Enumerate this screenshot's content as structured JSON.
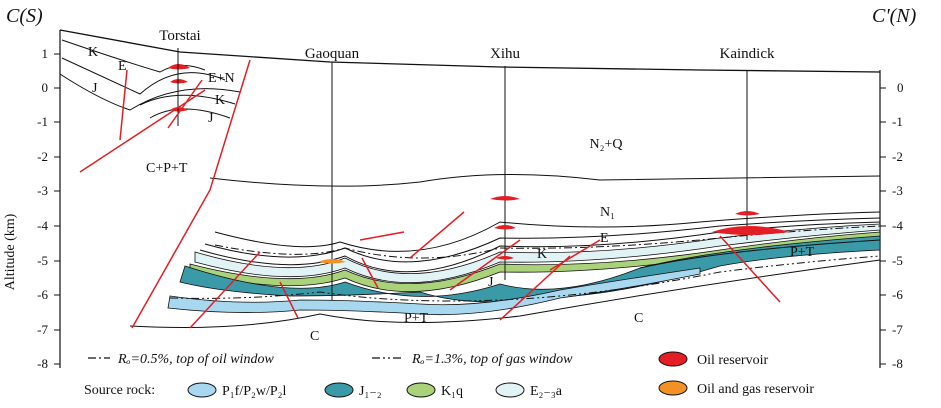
{
  "titles": {
    "left": "C(S)",
    "right": "C'(N)"
  },
  "axis": {
    "label": "Altitude (km)",
    "left_ticks": [
      "1",
      "0",
      "-1",
      "-2",
      "-3",
      "-4",
      "-5",
      "-6",
      "-7",
      "-8"
    ],
    "right_ticks": [
      "0",
      "-1",
      "-2",
      "-3",
      "-4",
      "-5",
      "-6",
      "-7",
      "-8"
    ]
  },
  "wells": [
    "Torstai",
    "Gaoquan",
    "Xihu",
    "Kaindick"
  ],
  "units": {
    "K_top": "K",
    "E_top": "E",
    "J_top": "J",
    "E_N": "E+N",
    "K_mid": "K",
    "J_mid": "J",
    "CPT": "C+P+T",
    "N2Q": "N₂+Q",
    "N1": "N₁",
    "E_right": "E",
    "K_right": "K",
    "J_center": "J",
    "PT_center": "P+T",
    "PT_right": "P+T",
    "C_left": "C",
    "C_right": "C"
  },
  "legend": {
    "ro_oil": "Rₒ=0.5%,  top of oil window",
    "ro_gas": "Rₒ=1.3%, top of gas window",
    "source_rock": "Source rock:",
    "rocks": [
      "P₁f/P₂w/P₂l",
      "J₁₋₂",
      "K₁q",
      "E₂₋₃a"
    ],
    "oil_reservoir": "Oil reservoir",
    "oil_gas_reservoir": "Oil and gas reservoir"
  },
  "colors": {
    "p_source": "#a8d8f0",
    "j_source": "#3a9aa8",
    "k_source": "#a9d27a",
    "e_source": "#e2f3f5",
    "oil": "#e31e24",
    "oil_gas": "#f39224",
    "fault": "#e31e24"
  }
}
